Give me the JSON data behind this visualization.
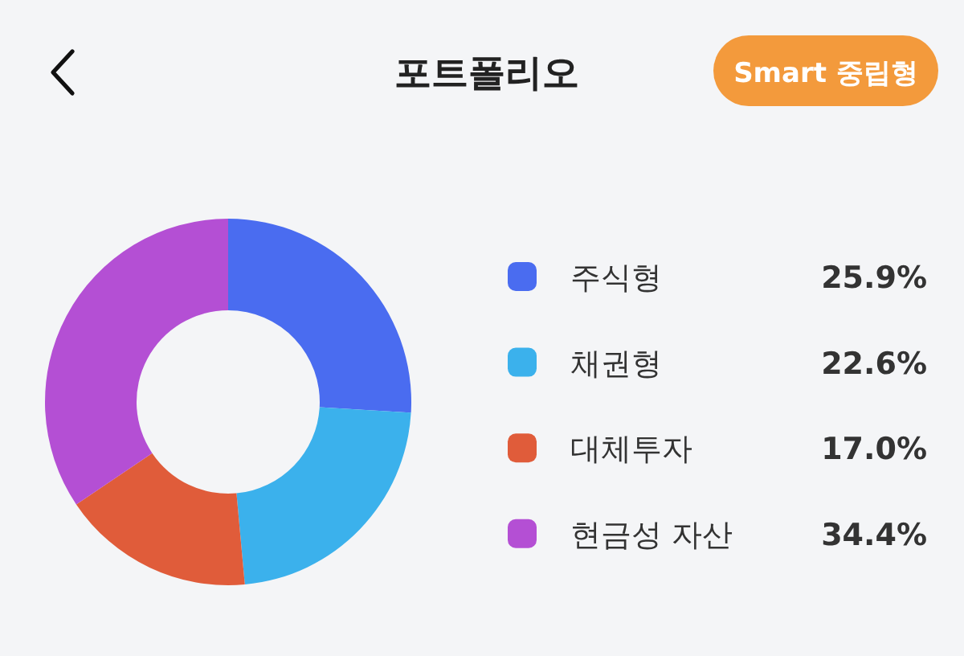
{
  "chart_data": {
    "type": "donut",
    "title": "포트폴리오",
    "subtitle": "Smart 중립형",
    "categories": [
      "주식형",
      "채권형",
      "대체투자",
      "현금성 자산"
    ],
    "values": [
      25.9,
      22.6,
      17.0,
      34.4
    ],
    "colors": [
      "#4a6cf0",
      "#3bb1ec",
      "#e05c3a",
      "#b44fd4"
    ],
    "value_labels": [
      "25.9%",
      "22.6%",
      "17.0%",
      "34.4%"
    ],
    "legend": "right"
  }
}
